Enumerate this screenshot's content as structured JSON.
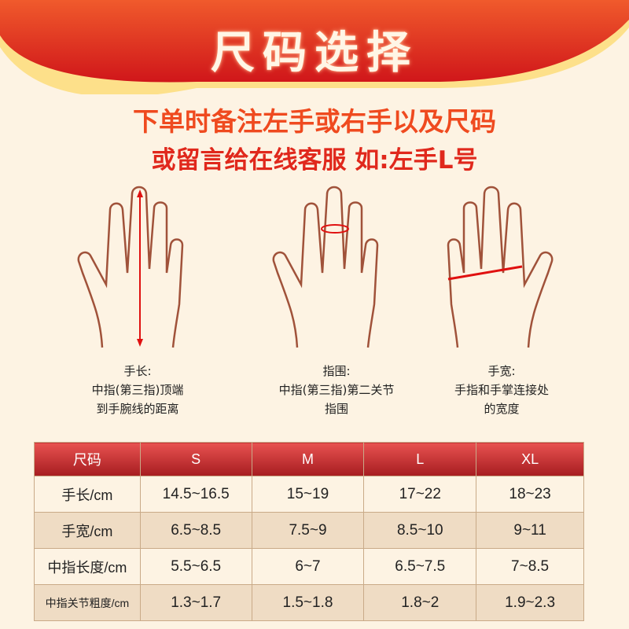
{
  "title": "尺码选择",
  "subtitle_line1": "下单时备注左手或右手以及尺码",
  "subtitle_line2": "或留言给在线客服 如:左手L号",
  "colors": {
    "banner_top": "#f05a2c",
    "banner_bottom": "#d0161a",
    "banner_edge": "#fde08a",
    "background": "#fdf3e3",
    "accent_text": "#e0281c",
    "hand_outline": "#a0523a",
    "measure_line": "#e01010"
  },
  "measurements": [
    {
      "title": "手长:",
      "line1": "中指(第三指)顶端",
      "line2": "到手腕线的距离"
    },
    {
      "title": "指围:",
      "line1": "中指(第三指)第二关节",
      "line2": "指围"
    },
    {
      "title": "手宽:",
      "line1": "手指和手掌连接处",
      "line2": "的宽度"
    }
  ],
  "table": {
    "headers": [
      "尺码",
      "S",
      "M",
      "L",
      "XL"
    ],
    "rows": [
      [
        "手长/cm",
        "14.5~16.5",
        "15~19",
        "17~22",
        "18~23"
      ],
      [
        "手宽/cm",
        "6.5~8.5",
        "7.5~9",
        "8.5~10",
        "9~11"
      ],
      [
        "中指长度/cm",
        "5.5~6.5",
        "6~7",
        "6.5~7.5",
        "7~8.5"
      ],
      [
        "中指关节粗度/cm",
        "1.3~1.7",
        "1.5~1.8",
        "1.8~2",
        "1.9~2.3"
      ]
    ]
  }
}
